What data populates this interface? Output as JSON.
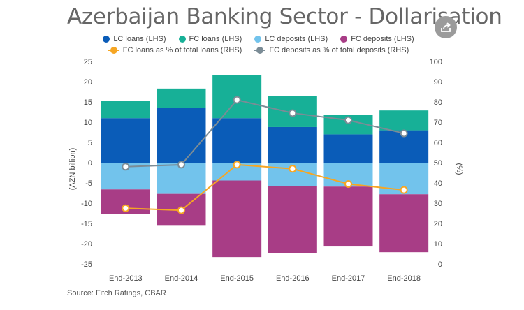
{
  "header": {
    "title": "Azerbaijan Banking Sector - Dollarisation",
    "share_icon": "share-icon"
  },
  "legend": {
    "row1": [
      {
        "label": "LC loans (LHS)",
        "color": "#0a5cb8"
      },
      {
        "label": "FC loans (LHS)",
        "color": "#17b097"
      },
      {
        "label": "LC deposits (LHS)",
        "color": "#72c3ec"
      },
      {
        "label": "FC deposits (LHS)",
        "color": "#a83d86"
      }
    ],
    "row2": [
      {
        "label": "FC loans as % of total loans (RHS)",
        "color": "#f6a623"
      },
      {
        "label": "FC deposits as % of total deposits (RHS)",
        "color": "#7b8c96"
      }
    ]
  },
  "chart_data": {
    "type": "bar",
    "stacked": true,
    "title": "Azerbaijan Banking Sector - Dollarisation",
    "categories": [
      "End-2013",
      "End-2014",
      "End-2015",
      "End-2016",
      "End-2017",
      "End-2018"
    ],
    "ylabel": "(AZN billion)",
    "ylim": [
      -25,
      25
    ],
    "yticks": [
      25,
      20,
      15,
      10,
      5,
      0,
      -5,
      -10,
      -15,
      -20,
      -25
    ],
    "y2label": "(%)",
    "y2lim": [
      0,
      100
    ],
    "y2ticks": [
      100,
      90,
      80,
      70,
      60,
      50,
      40,
      30,
      20,
      10,
      0
    ],
    "grid": false,
    "legend_position": "top",
    "series": [
      {
        "name": "LC loans (LHS)",
        "kind": "bar",
        "axis": "left",
        "color": "#0a5cb8",
        "values": [
          11,
          13.5,
          11,
          8.8,
          7,
          8
        ]
      },
      {
        "name": "FC loans (LHS)",
        "kind": "bar",
        "axis": "left",
        "color": "#17b097",
        "values": [
          4.3,
          4.8,
          10.7,
          7.7,
          4.8,
          4.9
        ]
      },
      {
        "name": "LC deposits (LHS)",
        "kind": "bar",
        "axis": "left",
        "color": "#72c3ec",
        "values": [
          -6.6,
          -7.7,
          -4.4,
          -5.7,
          -5.9,
          -7.8
        ]
      },
      {
        "name": "FC deposits (LHS)",
        "kind": "bar",
        "axis": "left",
        "color": "#a83d86",
        "values": [
          -6.1,
          -7.7,
          -18.9,
          -16.6,
          -14.8,
          -14.3
        ]
      },
      {
        "name": "FC loans as % of total loans (RHS)",
        "kind": "line",
        "axis": "right",
        "color": "#f6a623",
        "values": [
          27.5,
          26.5,
          49,
          47,
          39.5,
          36.5
        ]
      },
      {
        "name": "FC deposits as % of total deposits (RHS)",
        "kind": "line",
        "axis": "right",
        "color": "#7b8c96",
        "values": [
          48,
          49,
          81,
          74.5,
          71,
          64.5
        ]
      }
    ]
  },
  "footer": {
    "source": "Source: Fitch Ratings, CBAR"
  }
}
